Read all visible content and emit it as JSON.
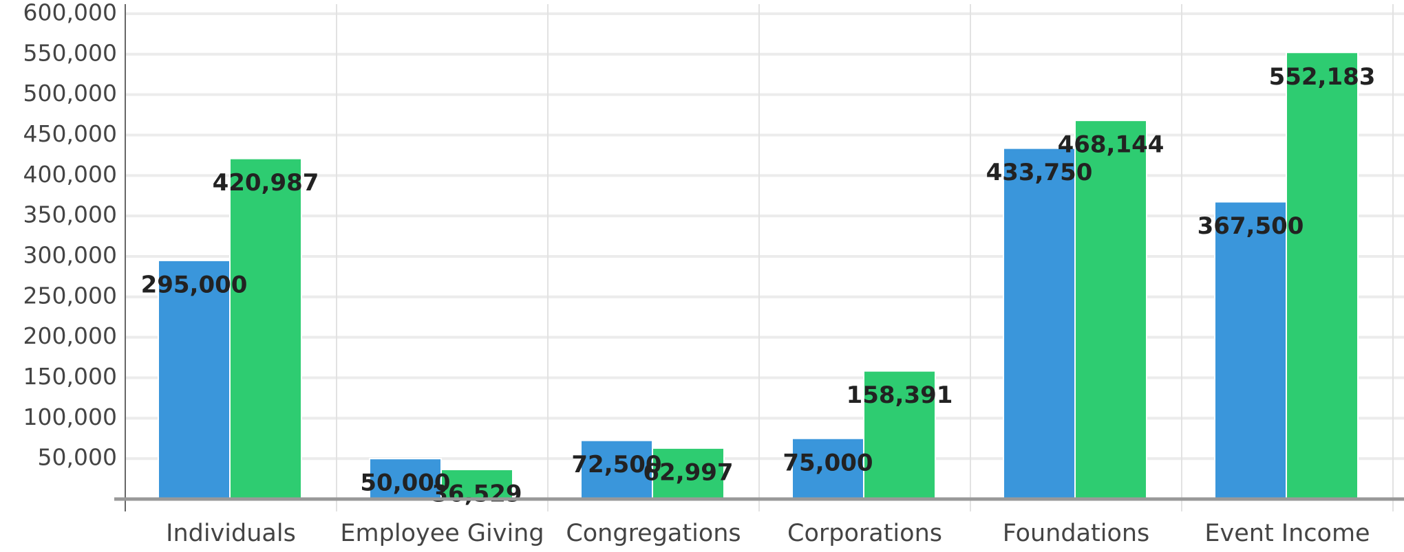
{
  "chart_data": {
    "type": "bar",
    "categories": [
      "Individuals",
      "Employee Giving",
      "Congregations",
      "Corporations",
      "Foundations",
      "Event Income"
    ],
    "series": [
      {
        "color": "#3a96db",
        "values": [
          295000,
          50000,
          72500,
          75000,
          433750,
          367500
        ],
        "value_labels": [
          "295,000",
          "50,000",
          "72,500",
          "75,000",
          "433,750",
          "367,500"
        ]
      },
      {
        "color": "#2ecc71",
        "values": [
          420987,
          36529,
          62997,
          158391,
          468144,
          552183
        ],
        "value_labels": [
          "420,987",
          "36,529",
          "62,997",
          "158,391",
          "468,144",
          "552,183"
        ]
      }
    ],
    "ylim": [
      0,
      600000
    ],
    "yticks": [
      {
        "value": 50000,
        "label": "50,000"
      },
      {
        "value": 100000,
        "label": "100,000"
      },
      {
        "value": 150000,
        "label": "150,000"
      },
      {
        "value": 200000,
        "label": "200,000"
      },
      {
        "value": 250000,
        "label": "250,000"
      },
      {
        "value": 300000,
        "label": "300,000"
      },
      {
        "value": 350000,
        "label": "350,000"
      },
      {
        "value": 400000,
        "label": "400,000"
      },
      {
        "value": 450000,
        "label": "450,000"
      },
      {
        "value": 500000,
        "label": "500,000"
      },
      {
        "value": 550000,
        "label": "550,000"
      },
      {
        "value": 600000,
        "label": "600,000"
      }
    ],
    "grid": true
  }
}
